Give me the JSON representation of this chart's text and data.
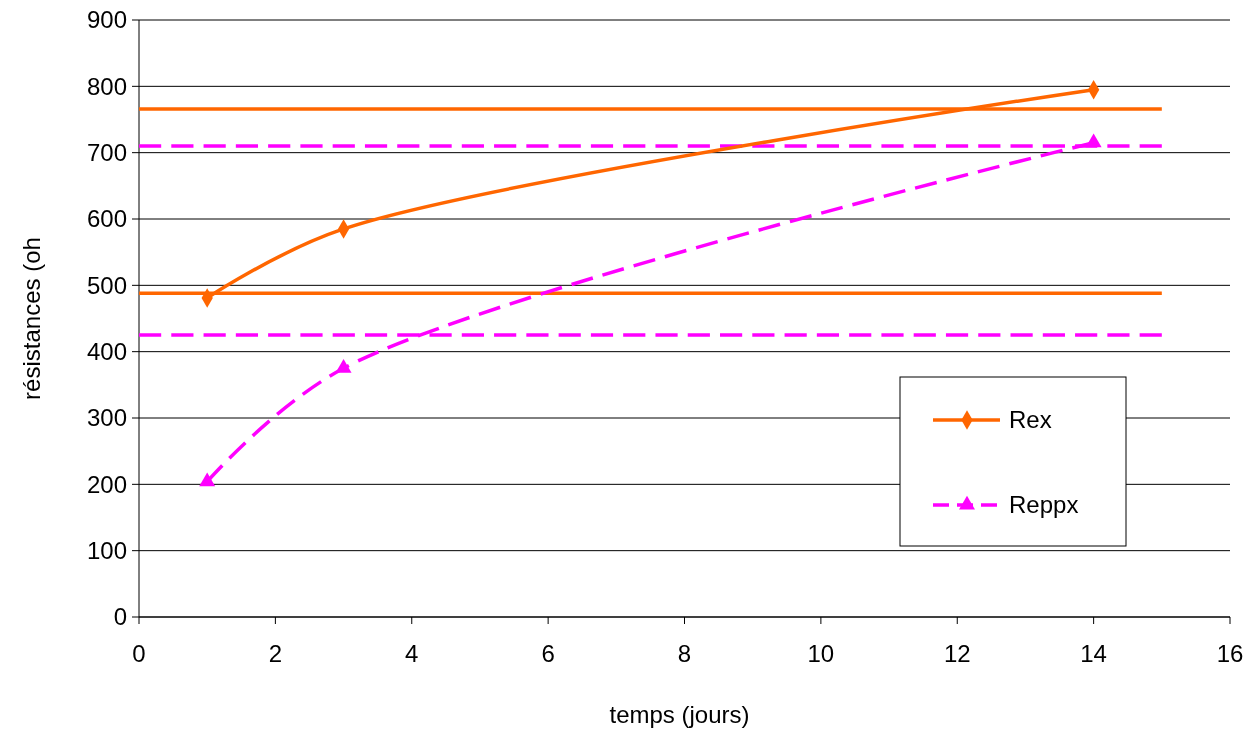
{
  "chart_data": {
    "type": "line",
    "xlabel": "temps (jours)",
    "ylabel": "résistances (oh",
    "xlim": [
      0,
      16
    ],
    "xticks": [
      0,
      2,
      4,
      6,
      8,
      10,
      12,
      14,
      16
    ],
    "ylim": [
      0,
      900
    ],
    "yticks": [
      0,
      100,
      200,
      300,
      400,
      500,
      600,
      700,
      800,
      900
    ],
    "grid": "y",
    "legend": "bottom right",
    "series": [
      {
        "x": [
          0,
          15
        ],
        "values": [
          766,
          766
        ],
        "color": "#ff6600",
        "marker": "none",
        "line_style": "solid"
      },
      {
        "x": [
          0,
          15
        ],
        "values": [
          488,
          488
        ],
        "color": "#ff6600",
        "marker": "none",
        "line_style": "solid"
      },
      {
        "x": [
          0,
          15
        ],
        "values": [
          710,
          710
        ],
        "color": "#ff00ff",
        "marker": "none",
        "line_style": "dashed"
      },
      {
        "x": [
          0,
          15
        ],
        "values": [
          425,
          425
        ],
        "color": "#ff00ff",
        "marker": "none",
        "line_style": "dashed"
      },
      {
        "name": "Rex",
        "x": [
          1,
          3,
          14
        ],
        "values": [
          481,
          585,
          795
        ],
        "color": "#ff6600",
        "marker": "diamond",
        "line_style": "solid"
      },
      {
        "name": "Reppx",
        "x": [
          1,
          3,
          14
        ],
        "values": [
          204,
          375,
          715
        ],
        "color": "#ff00ff",
        "marker": "triangle",
        "line_style": "dashed"
      }
    ]
  }
}
